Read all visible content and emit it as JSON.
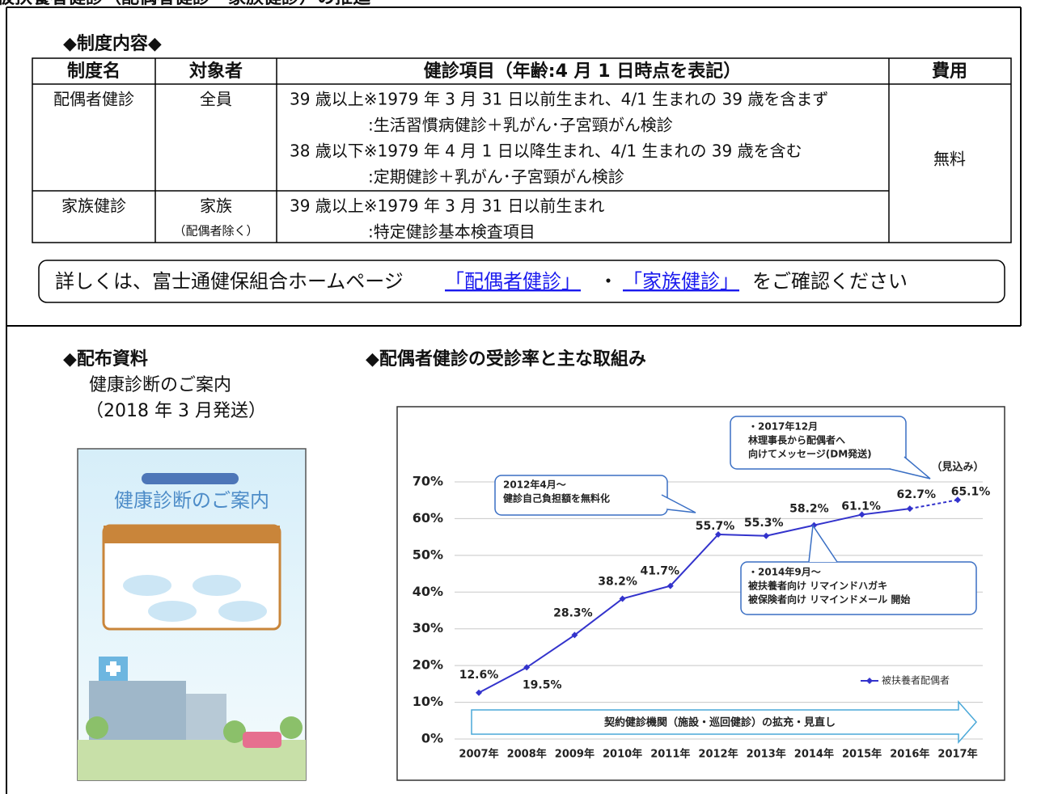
{
  "header": {
    "title": "被扶養者健診（配偶者健診・家族健診）の推進"
  },
  "system": {
    "heading": "◆制度内容◆",
    "columns": [
      "制度名",
      "対象者",
      "健診項目（年齢:4 月 1 日時点を表記）",
      "費用"
    ],
    "rows": [
      {
        "name": "配偶者健診",
        "target": "全員",
        "items": [
          "39 歳以上※1979 年 3 月 31 日以前生まれ、4/1 生まれの 39 歳を含まず",
          ":生活習慣病健診＋乳がん･子宮頸がん検診",
          "38 歳以下※1979 年 4 月 1 日以降生まれ、4/1 生まれの 39 歳を含む",
          ":定期健診＋乳がん･子宮頸がん検診"
        ]
      },
      {
        "name": "家族健診",
        "target": "家族",
        "target_note": "（配偶者除く）",
        "items": [
          "39 歳以上※1979 年 3 月 31 日以前生まれ",
          ":特定健診基本検査項目"
        ]
      }
    ],
    "cost": "無料"
  },
  "notice": {
    "before": "詳しくは、富士通健保組合ホームページ",
    "link1": "「配偶者健診」",
    "middle": "・",
    "link2": "「家族健診」",
    "after": "をご確認ください"
  },
  "materials": {
    "heading": "◆配布資料",
    "name": "健康診断のご案内",
    "date": "（2018 年 3 月発送）",
    "brochure_title": "健康診断のご案内"
  },
  "chart_heading": "◆配偶者健診の受診率と主な取組み",
  "chart_data": {
    "type": "line",
    "categories": [
      "2007年",
      "2008年",
      "2009年",
      "2010年",
      "2011年",
      "2012年",
      "2013年",
      "2014年",
      "2015年",
      "2016年",
      "2017年"
    ],
    "series": [
      {
        "name": "被扶養者配偶者",
        "color": "#3333cc",
        "values": [
          12.6,
          19.5,
          28.3,
          38.2,
          41.7,
          55.7,
          55.3,
          58.2,
          61.1,
          62.7,
          65.1
        ],
        "value_labels": [
          "12.6%",
          "19.5%",
          "28.3%",
          "38.2%",
          "41.7%",
          "55.7%",
          "55.3%",
          "58.2%",
          "61.1%",
          "62.7%",
          "65.1%"
        ]
      }
    ],
    "ylim": [
      0,
      70
    ],
    "yticks": [
      {
        "value": 0,
        "label": "0%"
      },
      {
        "value": 10,
        "label": "10%"
      },
      {
        "value": 20,
        "label": "20%"
      },
      {
        "value": 30,
        "label": "30%"
      },
      {
        "value": 40,
        "label": "40%"
      },
      {
        "value": 50,
        "label": "50%"
      },
      {
        "value": 60,
        "label": "60%"
      },
      {
        "value": 70,
        "label": "70%"
      }
    ],
    "grid": true,
    "projection_label": "（見込み）",
    "arrow_label": "契約健診機関（施設・巡回健診）の拡充・見直し",
    "annotations": [
      [
        "・2017年12月",
        "林理事長から配偶者へ",
        "向けてメッセージ(DM発送)"
      ],
      [
        "2012年4月～",
        "健診自己負担額を無料化"
      ],
      [
        "・2014年9月～",
        "被扶養者向け リマインドハガキ",
        "被保険者向け リマインドメール 開始"
      ]
    ]
  }
}
